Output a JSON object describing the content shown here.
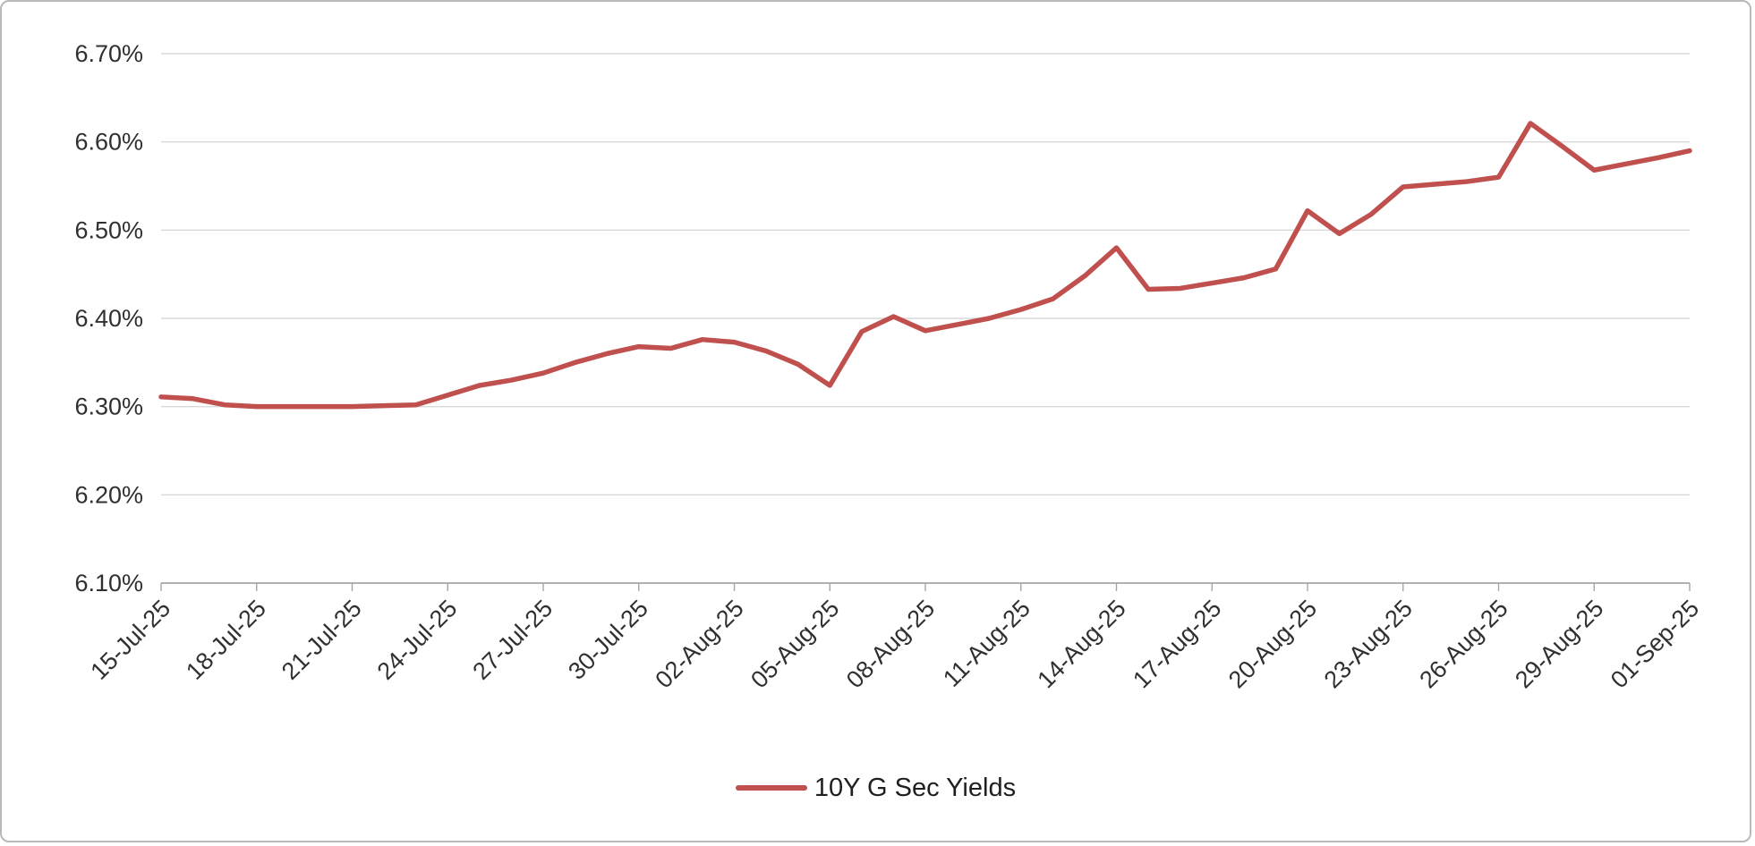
{
  "chart_data": {
    "type": "line",
    "title": "",
    "xlabel": "",
    "ylabel": "",
    "ylim": [
      6.1,
      6.7
    ],
    "grid": "horizontal",
    "legend_position": "bottom",
    "y_tick_values": [
      6.1,
      6.2,
      6.3,
      6.4,
      6.5,
      6.6,
      6.7
    ],
    "y_ticks": [
      "6.10%",
      "6.20%",
      "6.30%",
      "6.40%",
      "6.50%",
      "6.60%",
      "6.70%"
    ],
    "x_tick_every": 3,
    "x_tick_labels": [
      "15-Jul-25",
      "18-Jul-25",
      "21-Jul-25",
      "24-Jul-25",
      "27-Jul-25",
      "30-Jul-25",
      "02-Aug-25",
      "05-Aug-25",
      "08-Aug-25",
      "11-Aug-25",
      "14-Aug-25",
      "17-Aug-25",
      "20-Aug-25",
      "23-Aug-25",
      "26-Aug-25",
      "29-Aug-25",
      "01-Sep-25"
    ],
    "x": [
      "15-Jul-25",
      "16-Jul-25",
      "17-Jul-25",
      "18-Jul-25",
      "19-Jul-25",
      "20-Jul-25",
      "21-Jul-25",
      "22-Jul-25",
      "23-Jul-25",
      "24-Jul-25",
      "25-Jul-25",
      "26-Jul-25",
      "27-Jul-25",
      "28-Jul-25",
      "29-Jul-25",
      "30-Jul-25",
      "31-Jul-25",
      "01-Aug-25",
      "02-Aug-25",
      "03-Aug-25",
      "04-Aug-25",
      "05-Aug-25",
      "06-Aug-25",
      "07-Aug-25",
      "08-Aug-25",
      "09-Aug-25",
      "10-Aug-25",
      "11-Aug-25",
      "12-Aug-25",
      "13-Aug-25",
      "14-Aug-25",
      "15-Aug-25",
      "16-Aug-25",
      "17-Aug-25",
      "18-Aug-25",
      "19-Aug-25",
      "20-Aug-25",
      "21-Aug-25",
      "22-Aug-25",
      "23-Aug-25",
      "24-Aug-25",
      "25-Aug-25",
      "26-Aug-25",
      "27-Aug-25",
      "28-Aug-25",
      "29-Aug-25",
      "30-Aug-25",
      "31-Aug-25",
      "01-Sep-25"
    ],
    "series": [
      {
        "name": "10Y G Sec Yields",
        "color": "#c0504d",
        "values": [
          6.311,
          6.309,
          6.302,
          6.3,
          6.3,
          6.3,
          6.3,
          6.301,
          6.302,
          6.313,
          6.324,
          6.33,
          6.338,
          6.35,
          6.36,
          6.368,
          6.366,
          6.376,
          6.373,
          6.363,
          6.348,
          6.324,
          6.385,
          6.402,
          6.386,
          6.393,
          6.4,
          6.41,
          6.422,
          6.448,
          6.48,
          6.433,
          6.434,
          6.44,
          6.446,
          6.456,
          6.522,
          6.496,
          6.518,
          6.549,
          6.552,
          6.555,
          6.56,
          6.621,
          6.595,
          6.568,
          6.575,
          6.582,
          6.59
        ]
      }
    ]
  },
  "styles": {
    "line_color": "#c0504d",
    "grid_color": "#d9d9d9",
    "axis_color": "#a6a6a6",
    "label_color": "#303030",
    "border_color": "#b9b9b9",
    "background": "#ffffff"
  }
}
